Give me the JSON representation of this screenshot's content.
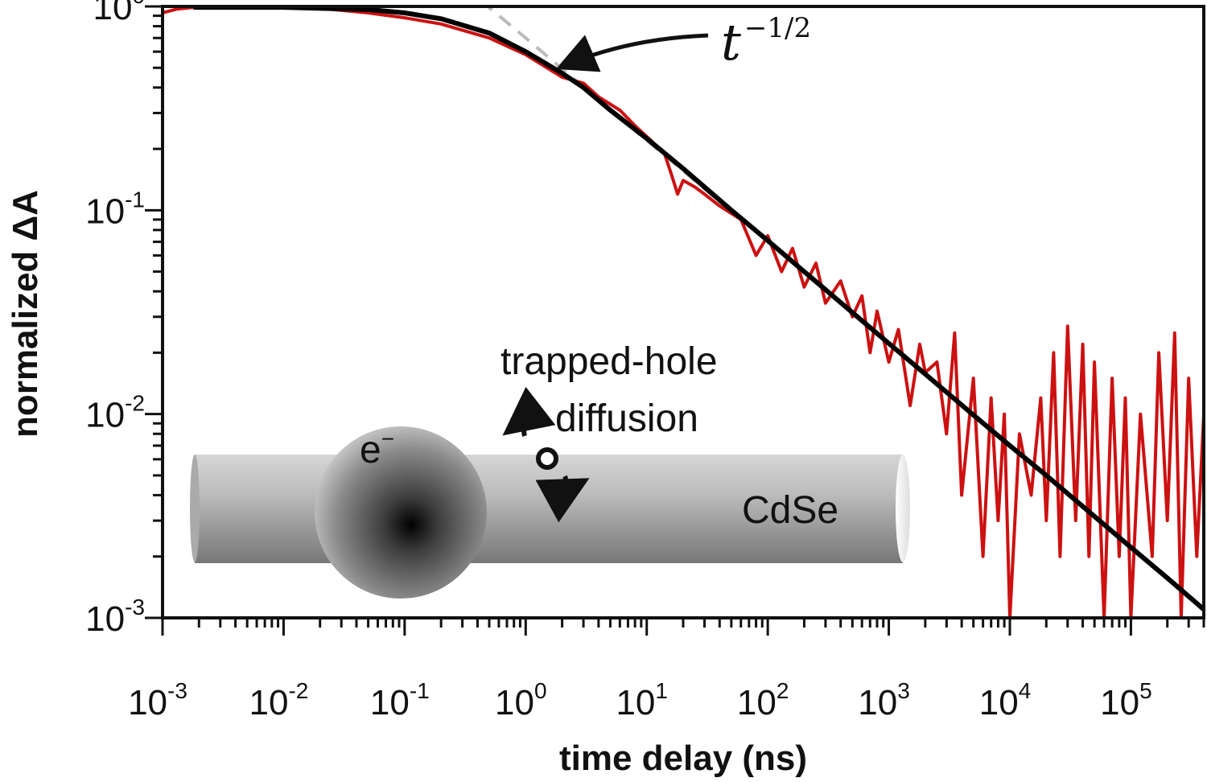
{
  "chart_data": {
    "type": "line",
    "xscale": "log",
    "yscale": "log",
    "xlim": [
      0.001,
      400000
    ],
    "ylim": [
      0.001,
      1
    ],
    "xlabel": "time delay (ns)",
    "ylabel": "normalized ΔA",
    "x_ticks": [
      {
        "base": "10",
        "exp": "-3",
        "value": 0.001
      },
      {
        "base": "10",
        "exp": "-2",
        "value": 0.01
      },
      {
        "base": "10",
        "exp": "-1",
        "value": 0.1
      },
      {
        "base": "10",
        "exp": "0",
        "value": 1
      },
      {
        "base": "10",
        "exp": "1",
        "value": 10
      },
      {
        "base": "10",
        "exp": "2",
        "value": 100
      },
      {
        "base": "10",
        "exp": "3",
        "value": 1000
      },
      {
        "base": "10",
        "exp": "4",
        "value": 10000
      },
      {
        "base": "10",
        "exp": "5",
        "value": 100000
      }
    ],
    "y_ticks": [
      {
        "base": "10",
        "exp": "0",
        "value": 1
      },
      {
        "base": "10",
        "exp": "-1",
        "value": 0.1
      },
      {
        "base": "10",
        "exp": "-2",
        "value": 0.01
      },
      {
        "base": "10",
        "exp": "-3",
        "value": 0.001
      }
    ],
    "series": [
      {
        "role": "measured data",
        "color": "#cc1111",
        "x": [
          0.001,
          0.0013,
          0.0018,
          0.003,
          0.006,
          0.01,
          0.02,
          0.05,
          0.1,
          0.2,
          0.5,
          1,
          2,
          3,
          4,
          6,
          8,
          10,
          14,
          16,
          18,
          20,
          25,
          30,
          40,
          60,
          80,
          100,
          130,
          160,
          200,
          250,
          300,
          400,
          500,
          600,
          700,
          800,
          1000,
          1200,
          1500,
          1800,
          2000,
          2500,
          3000,
          3500,
          4000,
          5000,
          6000,
          7000,
          8000,
          9000,
          10000,
          12000,
          15000,
          18000,
          20000,
          23000,
          26000,
          30000,
          35000,
          40000,
          45000,
          50000,
          60000,
          70000,
          80000,
          90000,
          100000,
          120000,
          150000,
          170000,
          200000,
          230000,
          260000,
          300000,
          350000,
          400000
        ],
        "y": [
          0.93,
          0.97,
          0.99,
          1.0,
          1.0,
          1.0,
          0.98,
          0.93,
          0.88,
          0.82,
          0.7,
          0.58,
          0.45,
          0.42,
          0.36,
          0.31,
          0.26,
          0.23,
          0.19,
          0.15,
          0.12,
          0.14,
          0.13,
          0.12,
          0.105,
          0.09,
          0.06,
          0.075,
          0.05,
          0.065,
          0.042,
          0.055,
          0.035,
          0.045,
          0.03,
          0.038,
          0.02,
          0.032,
          0.018,
          0.026,
          0.011,
          0.022,
          0.016,
          0.018,
          0.008,
          0.025,
          0.004,
          0.015,
          0.002,
          0.012,
          0.003,
          0.01,
          0.001,
          0.008,
          0.004,
          0.012,
          0.003,
          0.02,
          0.002,
          0.027,
          0.003,
          0.022,
          0.002,
          0.018,
          0.001,
          0.015,
          0.002,
          0.012,
          0.001,
          0.01,
          0.002,
          0.02,
          0.003,
          0.025,
          0.001,
          0.015,
          0.002,
          0.01
        ]
      },
      {
        "role": "fit",
        "color": "#000000",
        "x": [
          0.0018,
          0.01,
          0.05,
          0.1,
          0.2,
          0.5,
          1,
          2,
          3,
          5,
          10,
          20,
          50,
          100,
          200,
          500,
          1000,
          2000,
          5000,
          10000,
          20000,
          50000,
          100000,
          200000,
          400000
        ],
        "y": [
          0.99,
          0.99,
          0.965,
          0.93,
          0.87,
          0.74,
          0.6,
          0.47,
          0.4,
          0.31,
          0.225,
          0.16,
          0.1,
          0.071,
          0.05,
          0.0315,
          0.0222,
          0.0157,
          0.0099,
          0.007,
          0.005,
          0.00315,
          0.00222,
          0.00157,
          0.0011
        ]
      },
      {
        "role": "t^-1/2 reference",
        "color": "#bbbbbb",
        "dashed": true,
        "x": [
          0.3,
          1,
          10,
          100,
          1000,
          10000,
          100000,
          400000
        ],
        "y": [
          1.27,
          0.7,
          0.22,
          0.07,
          0.022,
          0.007,
          0.0022,
          0.0011
        ]
      }
    ],
    "annotations": {
      "slope_base": "t",
      "slope_exp": "−1/2",
      "inset_line1": "trapped-hole",
      "inset_line2": "diffusion",
      "electron_base": "e",
      "electron_exp": "−",
      "material": "CdSe",
      "hole": "h"
    }
  }
}
